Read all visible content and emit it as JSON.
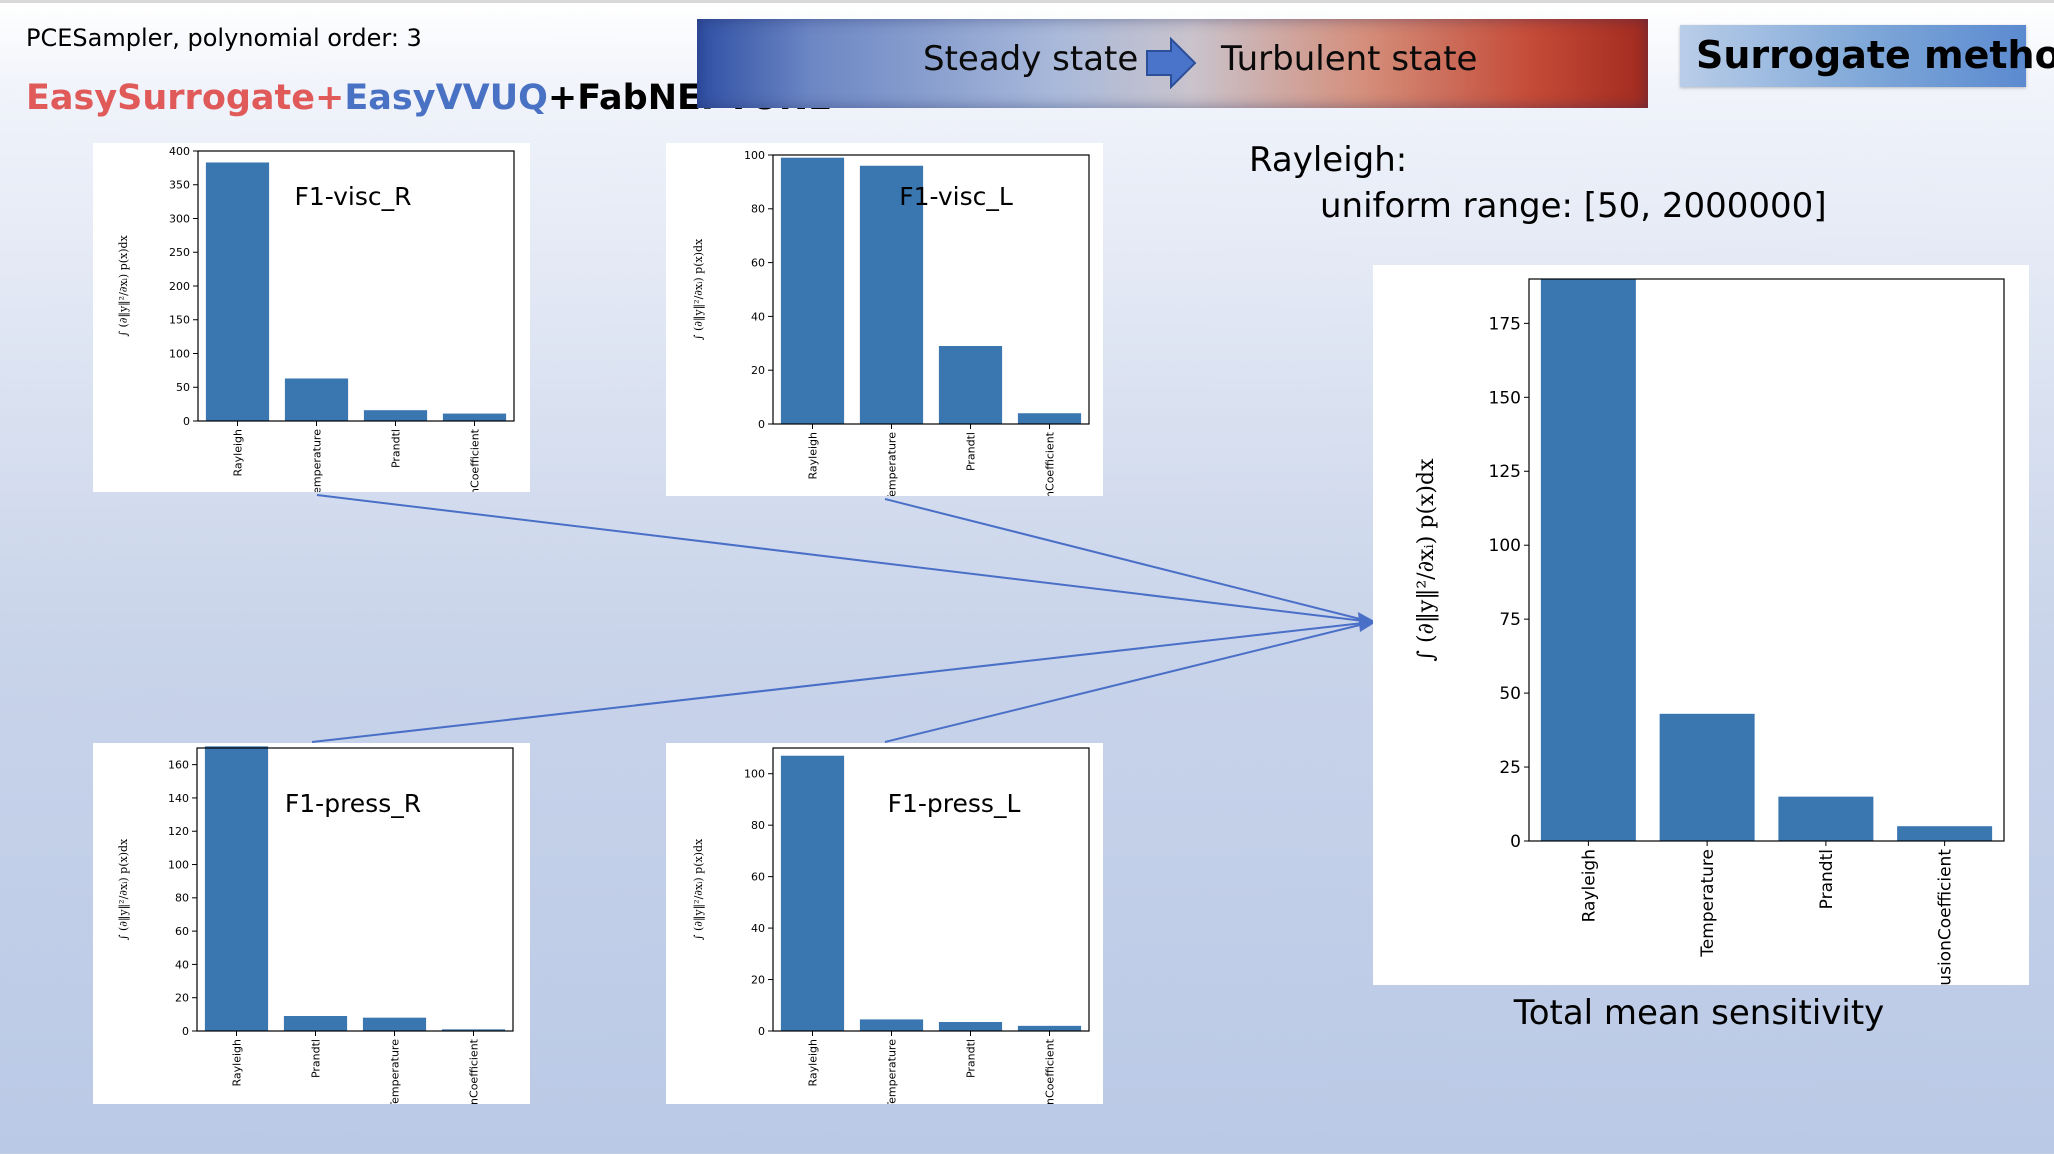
{
  "header": {
    "sampler_text": "PCESampler, polynomial order: 3",
    "brand_part1": "EasySurrogate+",
    "brand_part2": "EasyVVUQ",
    "brand_part3": "+FabNEPTUNE",
    "brand_colors": {
      "part1": "#e05a5a",
      "part2": "#4a72c4",
      "part3": "#000000"
    }
  },
  "banner": {
    "left_text": "Steady state",
    "right_text": "Turbulent state",
    "arrow_icon": "right-arrow-icon"
  },
  "surrogate_label": "Surrogate method",
  "rayleigh": {
    "label": "Rayleigh:",
    "range": "uniform range: [50, 2000000]"
  },
  "main_caption": "Total mean sensitivity",
  "colors": {
    "bar": "#3a76b0",
    "arrow": "#4a6fc7"
  },
  "chart_data": [
    {
      "type": "bar",
      "title": "F1-visc_R",
      "categories": [
        "Rayleigh",
        "Temperature",
        "Prandtl",
        "DiffusionCoefficient"
      ],
      "values": [
        383,
        63,
        16,
        11
      ],
      "ylim": [
        0,
        400
      ],
      "yticks": [
        0,
        50,
        100,
        150,
        200,
        250,
        300,
        350,
        400
      ],
      "ylabel": "∫ (∂‖y‖²/∂xᵢ) p(x)dx",
      "grid": false
    },
    {
      "type": "bar",
      "title": "F1-visc_L",
      "categories": [
        "Rayleigh",
        "Temperature",
        "Prandtl",
        "DiffusionCoefficient"
      ],
      "values": [
        99,
        96,
        29,
        4
      ],
      "ylim": [
        0,
        100
      ],
      "yticks": [
        0,
        20,
        40,
        60,
        80,
        100
      ],
      "ylabel": "∫ (∂‖y‖²/∂xᵢ) p(x)dx",
      "grid": false
    },
    {
      "type": "bar",
      "title": "F1-press_R",
      "categories": [
        "Rayleigh",
        "Prandtl",
        "Temperature",
        "DiffusionCoefficient"
      ],
      "values": [
        171,
        9,
        8,
        1
      ],
      "ylim": [
        0,
        170
      ],
      "yticks": [
        0,
        20,
        40,
        60,
        80,
        100,
        120,
        140,
        160
      ],
      "ylabel": "∫ (∂‖y‖²/∂xᵢ) p(x)dx",
      "grid": false
    },
    {
      "type": "bar",
      "title": "F1-press_L",
      "categories": [
        "Rayleigh",
        "Temperature",
        "Prandtl",
        "DiffusionCoefficient"
      ],
      "values": [
        107,
        4.5,
        3.5,
        2
      ],
      "ylim": [
        0,
        110
      ],
      "yticks": [
        0,
        20,
        40,
        60,
        80,
        100
      ],
      "ylabel": "∫ (∂‖y‖²/∂xᵢ) p(x)dx",
      "grid": false
    },
    {
      "type": "bar",
      "title": "",
      "categories": [
        "Rayleigh",
        "Temperature",
        "Prandtl",
        "DiffusionCoefficient"
      ],
      "values": [
        190,
        43,
        15,
        5
      ],
      "ylim": [
        0,
        190
      ],
      "yticks": [
        0,
        25,
        50,
        75,
        100,
        125,
        150,
        175
      ],
      "ylabel": "∫ (∂‖y‖²/∂xᵢ) p(x)dx",
      "grid": false
    }
  ]
}
